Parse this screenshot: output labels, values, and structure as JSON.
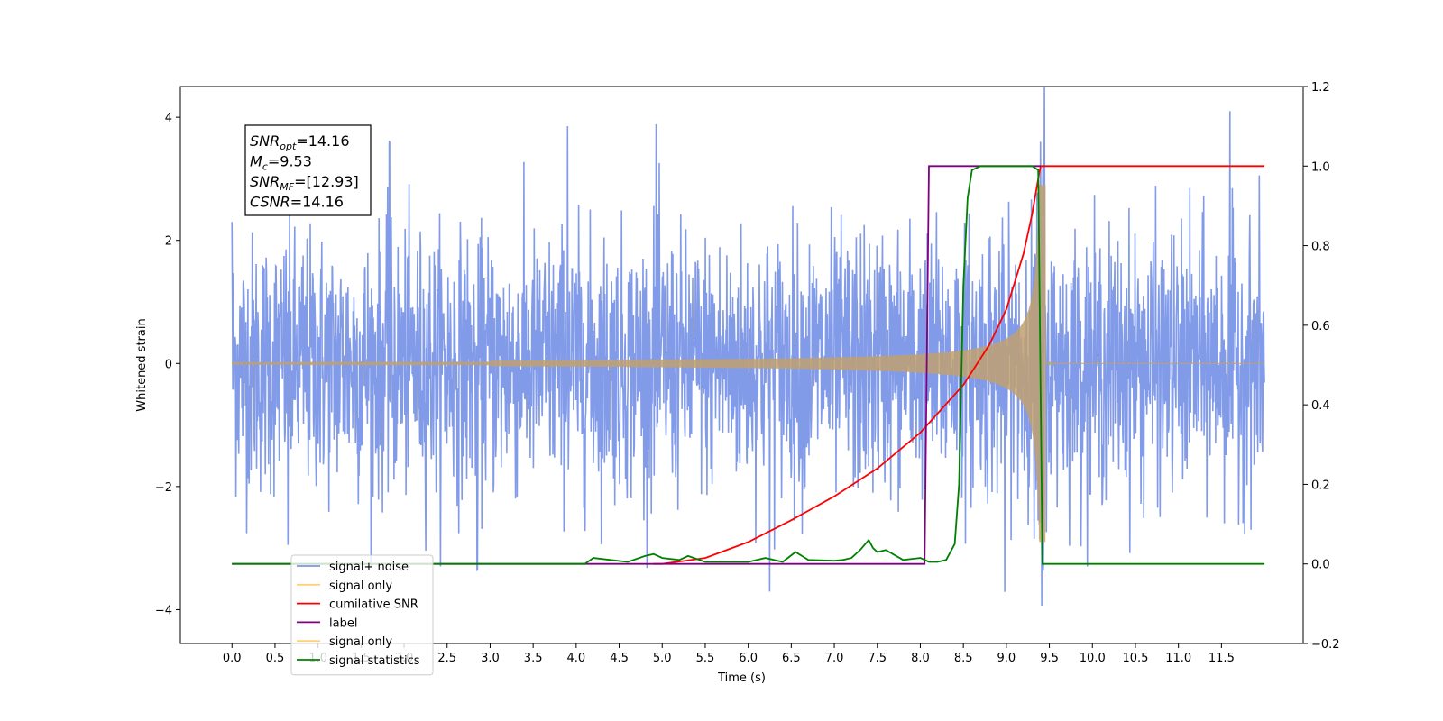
{
  "chart_data": {
    "type": "line",
    "xlabel": "Time (s)",
    "ylabel": "Whitened strain",
    "xlim": [
      -0.6,
      12.45
    ],
    "ylim": [
      -4.55,
      4.5
    ],
    "y2lim": [
      -0.2,
      1.2
    ],
    "x_ticks": [
      0.0,
      0.5,
      1.0,
      1.5,
      2.0,
      2.5,
      3.0,
      3.5,
      4.0,
      4.5,
      5.0,
      5.5,
      6.0,
      6.5,
      7.0,
      7.5,
      8.0,
      8.5,
      9.0,
      9.5,
      10.0,
      10.5,
      11.0,
      11.5
    ],
    "x_tick_labels": [
      "0.0",
      "0.5",
      "1.0",
      "1.5",
      "2.0",
      "2.5",
      "3.0",
      "3.5",
      "4.0",
      "4.5",
      "5.0",
      "5.5",
      "6.0",
      "6.5",
      "7.0",
      "7.5",
      "8.0",
      "8.5",
      "9.0",
      "9.5",
      "10.0",
      "10.5",
      "11.0",
      "11.5"
    ],
    "y_ticks": [
      -4,
      -2,
      0,
      2,
      4
    ],
    "y_tick_labels": [
      "−4",
      "−2",
      "0",
      "2",
      "4"
    ],
    "y2_ticks": [
      -0.2,
      0.0,
      0.2,
      0.4,
      0.6,
      0.8,
      1.0,
      1.2
    ],
    "y2_tick_labels": [
      "−0.2",
      "0.0",
      "0.2",
      "0.4",
      "0.6",
      "0.8",
      "1.0",
      "1.2"
    ],
    "grid": false,
    "legend_position": "lower-left",
    "annotation": {
      "lines": [
        {
          "base": "SNR",
          "sub": "opt",
          "value": "=14.16"
        },
        {
          "base": "M",
          "sub": "c",
          "value": "=9.53"
        },
        {
          "base": "SNR",
          "sub": "MF",
          "value": "=[12.93]"
        },
        {
          "base": "CSNR",
          "sub": "",
          "value": "=14.16"
        }
      ]
    },
    "series": [
      {
        "name": "signal+ noise",
        "axis": "left",
        "color": "#7b96e8",
        "description_hint": "noise",
        "noise_std": 1.05,
        "peak_extremes": [
          [
            0.0,
            2.3
          ],
          [
            1.83,
            3.6
          ],
          [
            3.9,
            3.9
          ],
          [
            4.93,
            3.9
          ],
          [
            6.25,
            -3.75
          ],
          [
            8.98,
            -3.65
          ],
          [
            9.38,
            -3.5
          ],
          [
            11.6,
            4.1
          ],
          [
            0.65,
            -2.95
          ],
          [
            2.85,
            -3.35
          ]
        ],
        "x_range": [
          0.0,
          12.0
        ]
      },
      {
        "name": "signal only",
        "axis": "left",
        "color": "#c0a070",
        "chirp": {
          "t_start": 0.0,
          "t_merge": 9.4,
          "amp_at_start": 0.02,
          "amp_peak": 2.9,
          "t_end": 12.0
        }
      },
      {
        "name": "cumilative SNR",
        "axis": "right",
        "color": "#ff0000",
        "x": [
          4.9,
          5.0,
          5.5,
          6.0,
          6.5,
          7.0,
          7.5,
          8.0,
          8.5,
          8.8,
          9.0,
          9.2,
          9.3,
          9.38,
          9.4,
          9.5,
          12.0
        ],
        "y": [
          0.0,
          0.0,
          0.015,
          0.055,
          0.11,
          0.17,
          0.24,
          0.33,
          0.45,
          0.55,
          0.64,
          0.78,
          0.88,
          0.98,
          1.0,
          1.0,
          1.0
        ]
      },
      {
        "name": "label",
        "axis": "right",
        "color": "#800080",
        "x": [
          0.0,
          8.05,
          8.1,
          9.37,
          9.4
        ],
        "y": [
          0.0,
          0.0,
          1.0,
          1.0,
          1.0
        ]
      },
      {
        "name": "signal only",
        "axis": "right",
        "color": "#800080",
        "legend_only": true
      },
      {
        "name": "signal statistics",
        "axis": "right",
        "color": "#008000",
        "x": [
          0.0,
          4.1,
          4.2,
          4.4,
          4.6,
          4.8,
          4.9,
          5.0,
          5.2,
          5.3,
          5.5,
          6.0,
          6.2,
          6.4,
          6.55,
          6.7,
          7.0,
          7.1,
          7.2,
          7.3,
          7.4,
          7.45,
          7.5,
          7.6,
          7.8,
          8.0,
          8.1,
          8.2,
          8.3,
          8.4,
          8.45,
          8.5,
          8.55,
          8.6,
          8.7,
          8.8,
          9.0,
          9.3,
          9.37,
          9.42,
          10.0,
          12.0
        ],
        "y": [
          0.0,
          0.0,
          0.015,
          0.01,
          0.005,
          0.02,
          0.025,
          0.015,
          0.01,
          0.02,
          0.005,
          0.005,
          0.015,
          0.005,
          0.03,
          0.01,
          0.008,
          0.01,
          0.015,
          0.035,
          0.06,
          0.04,
          0.03,
          0.035,
          0.01,
          0.015,
          0.005,
          0.005,
          0.01,
          0.05,
          0.2,
          0.7,
          0.92,
          0.99,
          1.0,
          1.0,
          1.0,
          1.0,
          0.99,
          0.0,
          0.0,
          0.0
        ]
      }
    ]
  },
  "legend": {
    "items": [
      {
        "label": "signal+ noise",
        "color": "#7b96e8"
      },
      {
        "label": "signal only",
        "color": "#ffcf7f"
      },
      {
        "label": "cumilative SNR",
        "color": "#ff0000"
      },
      {
        "label": "label",
        "color": "#800080"
      },
      {
        "label": "signal only",
        "color": "#ffcf7f"
      },
      {
        "label": "signal statistics",
        "color": "#008000"
      }
    ]
  }
}
